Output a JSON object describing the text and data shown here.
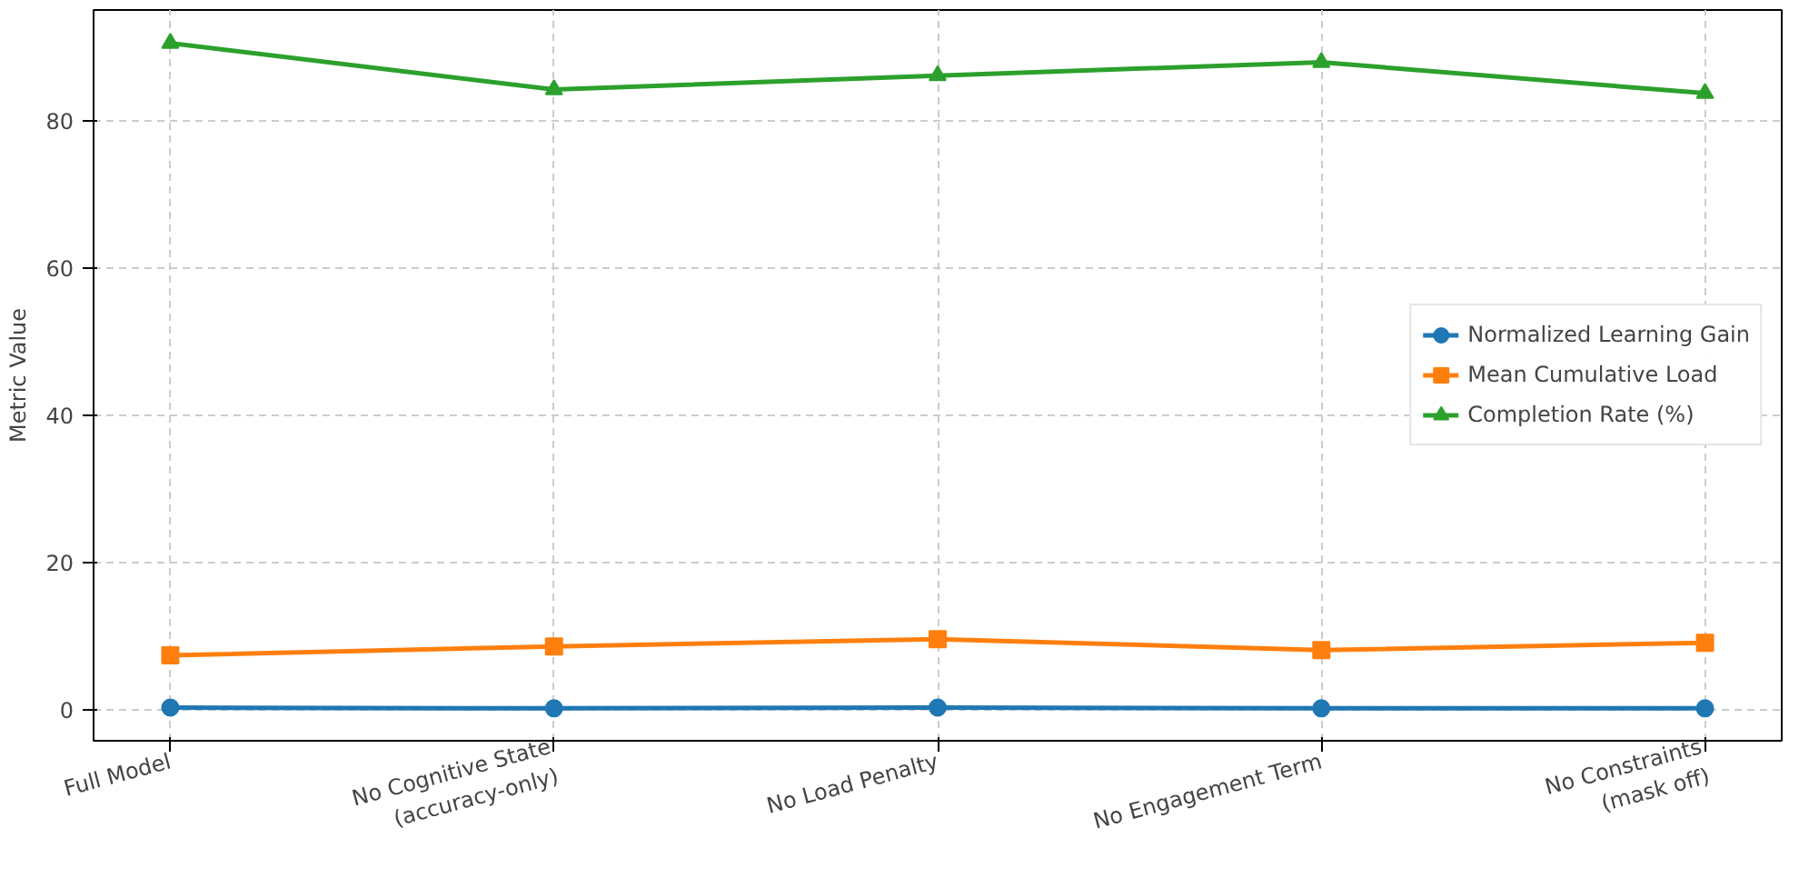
{
  "chart_data": {
    "type": "line",
    "ylabel": "Metric Value",
    "categories": [
      "Full Model",
      "No Cognitive State\n(accuracy-only)",
      "No Load Penalty",
      "No Engagement Term",
      "No Constraints\n(mask off)"
    ],
    "series": [
      {
        "name": "Normalized Learning Gain",
        "color": "#1f77b4",
        "marker": "circle",
        "values": [
          0.3,
          0.2,
          0.3,
          0.2,
          0.2
        ]
      },
      {
        "name": "Mean Cumulative Load",
        "color": "#ff7f0e",
        "marker": "square",
        "values": [
          7.4,
          8.6,
          9.6,
          8.1,
          9.1
        ]
      },
      {
        "name": "Completion Rate (%)",
        "color": "#2ca02c",
        "marker": "triangle",
        "values": [
          90.5,
          84.2,
          86.1,
          87.9,
          83.7
        ]
      }
    ],
    "ylim": [
      -4.2,
      95
    ],
    "yticks": [
      0,
      20,
      40,
      60,
      80
    ],
    "grid": true,
    "legend": "right",
    "line_style": "solid"
  }
}
